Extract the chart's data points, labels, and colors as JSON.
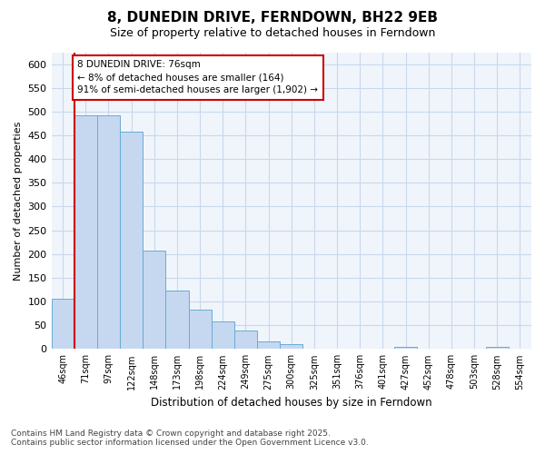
{
  "title": "8, DUNEDIN DRIVE, FERNDOWN, BH22 9EB",
  "subtitle": "Size of property relative to detached houses in Ferndown",
  "xlabel": "Distribution of detached houses by size in Ferndown",
  "ylabel": "Number of detached properties",
  "footer_line1": "Contains HM Land Registry data © Crown copyright and database right 2025.",
  "footer_line2": "Contains public sector information licensed under the Open Government Licence v3.0.",
  "bin_labels": [
    "46sqm",
    "71sqm",
    "97sqm",
    "122sqm",
    "148sqm",
    "173sqm",
    "198sqm",
    "224sqm",
    "249sqm",
    "275sqm",
    "300sqm",
    "325sqm",
    "351sqm",
    "376sqm",
    "401sqm",
    "427sqm",
    "452sqm",
    "478sqm",
    "503sqm",
    "528sqm",
    "554sqm"
  ],
  "bar_values": [
    105,
    492,
    492,
    458,
    207,
    123,
    82,
    58,
    38,
    15,
    10,
    0,
    0,
    0,
    0,
    5,
    0,
    0,
    0,
    5,
    0
  ],
  "bar_color": "#c5d8f0",
  "bar_edge_color": "#6aaad4",
  "grid_color": "#c8d8eb",
  "background_color": "#ffffff",
  "plot_bg_color": "#f0f5fc",
  "property_line_x": 1,
  "annotation_text": "8 DUNEDIN DRIVE: 76sqm\n← 8% of detached houses are smaller (164)\n91% of semi-detached houses are larger (1,902) →",
  "annotation_box_edgecolor": "#cc0000",
  "ylim": [
    0,
    625
  ],
  "yticks": [
    0,
    50,
    100,
    150,
    200,
    250,
    300,
    350,
    400,
    450,
    500,
    550,
    600
  ]
}
